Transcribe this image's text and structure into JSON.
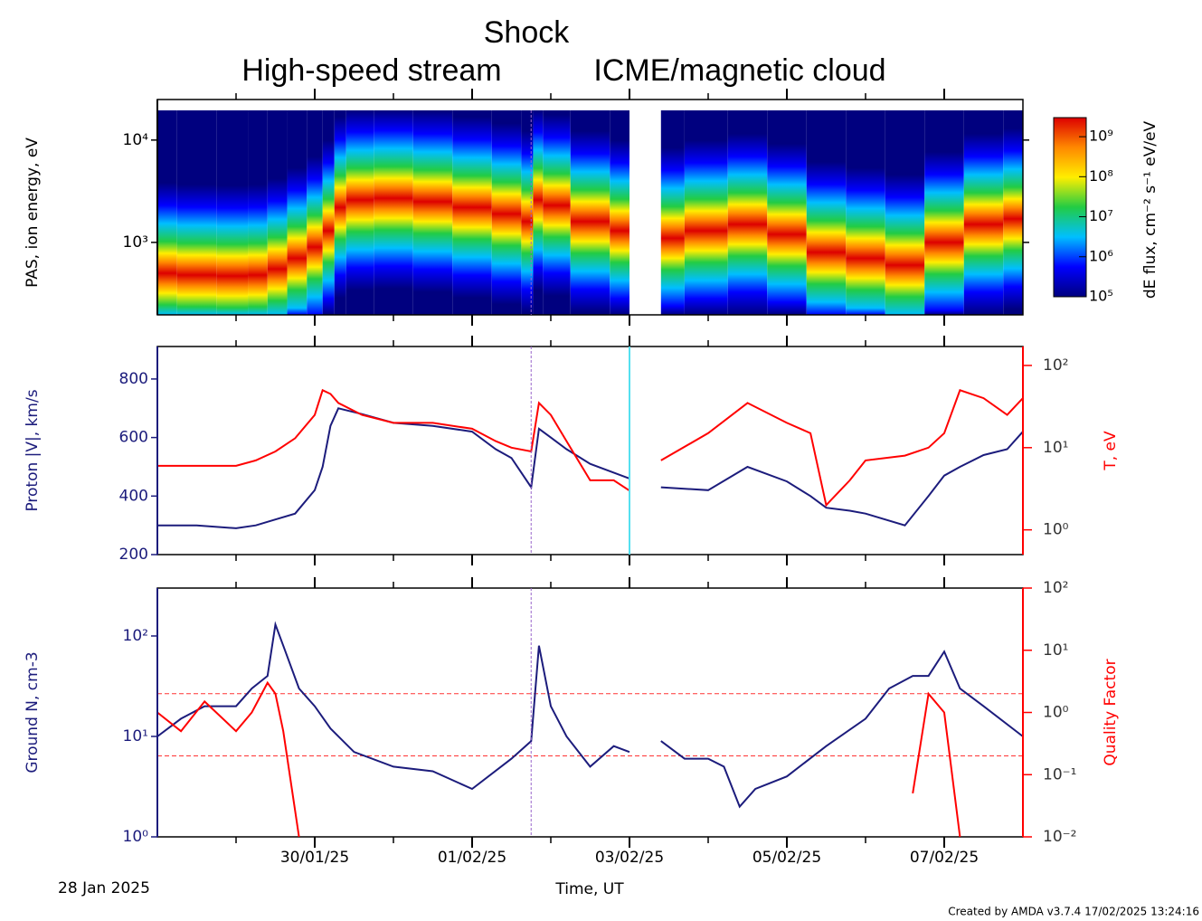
{
  "annotations": {
    "shock": "Shock",
    "hss": "High-speed stream",
    "icme": "ICME/magnetic cloud"
  },
  "footer": "Created by AMDA v3.7.4 17/02/2025 13:24:16",
  "chart_data": [
    {
      "type": "spectrogram",
      "ylabel": "PAS, ion energy, eV",
      "ylog": true,
      "ylim": [
        196,
        19500
      ],
      "yticks": [
        {
          "value": 1000,
          "label": "10³"
        },
        {
          "value": 10000,
          "label": "10⁴"
        }
      ],
      "x": [
        0,
        0.5,
        1,
        1.3,
        1.5,
        1.8,
        2,
        2.2,
        2.3,
        2.5,
        3,
        3.5,
        4,
        4.5,
        4.75,
        4.8,
        5,
        5.5,
        6,
        6.2,
        6.4,
        7,
        7.5,
        8,
        8.5,
        9,
        9.5,
        10,
        10.5,
        11
      ],
      "peak_energy": [
        500,
        480,
        470,
        480,
        550,
        700,
        900,
        1300,
        2200,
        2600,
        2700,
        2500,
        2200,
        1900,
        1600,
        2600,
        2300,
        1600,
        1300,
        null,
        1100,
        1300,
        1500,
        1200,
        800,
        700,
        600,
        1000,
        1500,
        1700
      ],
      "zlabel": "dE flux, cm⁻² s⁻¹ eV/eV",
      "zlog": true,
      "zlim": [
        100000,
        3000000000
      ],
      "zticks": [
        {
          "value": 100000,
          "label": "10⁵"
        },
        {
          "value": 1000000,
          "label": "10⁶"
        },
        {
          "value": 10000000,
          "label": "10⁷"
        },
        {
          "value": 100000000,
          "label": "10⁸"
        },
        {
          "value": 1000000000,
          "label": "10⁹"
        }
      ],
      "colormap": [
        "#00007f",
        "#0000ff",
        "#00bfff",
        "#22cc44",
        "#ffee00",
        "#ff8800",
        "#dd0000"
      ],
      "vlines": [
        {
          "x": 4.75,
          "color": "#9966cc",
          "dashed": true
        }
      ]
    },
    {
      "type": "line",
      "ylabel": "Proton |V|, km/s",
      "y2label": "T, eV",
      "ylim": [
        200,
        911
      ],
      "yticks": [
        200,
        400,
        600,
        800
      ],
      "y2log": true,
      "y2lim": [
        0.5,
        170
      ],
      "y2ticks": [
        {
          "value": 1,
          "label": "10⁰"
        },
        {
          "value": 10,
          "label": "10¹"
        },
        {
          "value": 100,
          "label": "10²"
        }
      ],
      "x": [
        0,
        0.5,
        1,
        1.25,
        1.5,
        1.75,
        2,
        2.1,
        2.2,
        2.3,
        2.6,
        3,
        3.5,
        4,
        4.3,
        4.5,
        4.75,
        4.85,
        5,
        5.2,
        5.5,
        5.8,
        6,
        6.2,
        6.4,
        7,
        7.5,
        8,
        8.3,
        8.5,
        8.8,
        9,
        9.5,
        9.8,
        10,
        10.2,
        10.5,
        10.8,
        11
      ],
      "series": [
        {
          "color": "#1c1c7c",
          "values": [
            300,
            300,
            290,
            300,
            320,
            340,
            420,
            500,
            640,
            700,
            680,
            650,
            640,
            620,
            560,
            530,
            430,
            630,
            600,
            560,
            510,
            480,
            460,
            null,
            430,
            420,
            500,
            450,
            400,
            360,
            350,
            340,
            300,
            400,
            470,
            500,
            540,
            560,
            620
          ]
        },
        {
          "color": "#ff0000",
          "axis": "y2",
          "values": [
            6,
            6,
            6,
            7,
            9,
            13,
            25,
            50,
            45,
            35,
            25,
            20,
            20,
            17,
            12,
            10,
            9,
            35,
            25,
            12,
            4,
            4,
            3,
            null,
            7,
            15,
            35,
            20,
            15,
            2,
            4,
            7,
            8,
            10,
            15,
            50,
            40,
            25,
            40
          ]
        }
      ],
      "vlines": [
        {
          "x": 4.75,
          "color": "#9966cc",
          "dashed": true
        },
        {
          "x": 6,
          "color": "#55e0f0",
          "dashed": false
        }
      ]
    },
    {
      "type": "line",
      "ylabel": "Ground N, cm-3",
      "y2label": "Quality Factor",
      "ylog": true,
      "ylim": [
        1,
        300
      ],
      "yticks": [
        {
          "value": 1,
          "label": "10⁰"
        },
        {
          "value": 10,
          "label": "10¹"
        },
        {
          "value": 100,
          "label": "10²"
        }
      ],
      "y2log": true,
      "y2lim": [
        0.01,
        100
      ],
      "y2ticks": [
        {
          "value": 0.01,
          "label": "10⁻²"
        },
        {
          "value": 0.1,
          "label": "10⁻¹"
        },
        {
          "value": 1,
          "label": "10⁰"
        },
        {
          "value": 10,
          "label": "10¹"
        },
        {
          "value": 100,
          "label": "10²"
        }
      ],
      "x": [
        0,
        0.3,
        0.6,
        1,
        1.2,
        1.4,
        1.5,
        1.6,
        1.8,
        2,
        2.2,
        2.5,
        3,
        3.5,
        4,
        4.5,
        4.75,
        4.85,
        5,
        5.2,
        5.5,
        5.8,
        6,
        6.2,
        6.4,
        6.7,
        7,
        7.2,
        7.4,
        7.6,
        8,
        8.5,
        9,
        9.3,
        9.6,
        9.8,
        10,
        10.2,
        10.5,
        11
      ],
      "series": [
        {
          "color": "#1c1c7c",
          "values": [
            10,
            15,
            20,
            20,
            30,
            40,
            130,
            80,
            30,
            20,
            12,
            7,
            5,
            4.5,
            3,
            6,
            9,
            80,
            20,
            10,
            5,
            8,
            7,
            null,
            9,
            6,
            6,
            5,
            2,
            3,
            4,
            8,
            15,
            30,
            40,
            40,
            70,
            30,
            20,
            10
          ]
        },
        {
          "color": "#ff0000",
          "axis": "y2",
          "values": [
            1,
            0.5,
            1.5,
            0.5,
            1,
            3,
            2,
            0.5,
            0.01,
            null,
            null,
            null,
            null,
            null,
            null,
            null,
            null,
            null,
            null,
            null,
            null,
            null,
            null,
            null,
            null,
            null,
            null,
            null,
            null,
            null,
            null,
            null,
            null,
            null,
            0.05,
            2,
            1,
            0.01,
            null,
            null
          ]
        }
      ],
      "hlines": [
        {
          "value": 2,
          "axis": "y2",
          "color": "#ff3333"
        },
        {
          "value": 0.2,
          "axis": "y2",
          "color": "#ff3333"
        }
      ],
      "vlines": [
        {
          "x": 4.75,
          "color": "#9966cc",
          "dashed": true
        }
      ],
      "xlabel": "Time, UT",
      "start_label": "28 Jan 2025",
      "xlim": [
        0,
        11
      ],
      "xticks": [
        {
          "value": 2,
          "label": "30/01/25"
        },
        {
          "value": 4,
          "label": "01/02/25"
        },
        {
          "value": 6,
          "label": "03/02/25"
        },
        {
          "value": 8,
          "label": "05/02/25"
        },
        {
          "value": 10,
          "label": "07/02/25"
        }
      ],
      "xminor": [
        1,
        3,
        5,
        7,
        9
      ]
    }
  ]
}
